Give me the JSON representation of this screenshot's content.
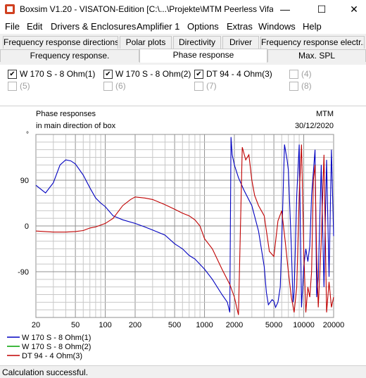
{
  "window": {
    "title": "Boxsim V1.20 - VISATON-Edition [C:\\...\\Projekte\\MTM Peerless Vifa...",
    "minimize": "—",
    "maximize": "☐",
    "close": "✕"
  },
  "menu": [
    "File",
    "Edit",
    "Drivers & Enclosures",
    "Amplifier 1",
    "Options",
    "Extras",
    "Windows",
    "Help"
  ],
  "tabs_row1": [
    "Frequency response directions",
    "Polar plots",
    "Directivity",
    "Driver",
    "Frequency response electr.."
  ],
  "tabs_row2": [
    "Frequency response.",
    "Phase response",
    "Max. SPL"
  ],
  "active_tab": "Phase response",
  "checkboxes": [
    {
      "label": "W 170 S - 8 Ohm(1)",
      "checked": true
    },
    {
      "label": "W 170 S - 8 Ohm(2)",
      "checked": true
    },
    {
      "label": "DT 94 - 4 Ohm(3)",
      "checked": true
    },
    {
      "label": "(4)",
      "checked": false
    },
    {
      "label": "(5)",
      "checked": false
    },
    {
      "label": "(6)",
      "checked": false
    },
    {
      "label": "(7)",
      "checked": false
    },
    {
      "label": "(8)",
      "checked": false
    }
  ],
  "chart_data": {
    "type": "line",
    "title": "Phase responses",
    "subtitle": "in main direction of box",
    "project": "MTM",
    "date": "30/12/2020",
    "x_scale": "log",
    "xlim": [
      20,
      20000
    ],
    "ylim": [
      -180,
      180
    ],
    "x_ticks": [
      20,
      50,
      100,
      200,
      500,
      1000,
      2000,
      5000,
      10000,
      20000
    ],
    "y_ticks": [
      90,
      0,
      -90
    ],
    "top_marker": "°",
    "grid": true,
    "legend_position": "bottom-left",
    "series": [
      {
        "name": "W 170 S - 8 Ohm(1)",
        "color": "#0000c0",
        "points": [
          [
            20,
            80
          ],
          [
            25,
            65
          ],
          [
            30,
            85
          ],
          [
            35,
            120
          ],
          [
            40,
            130
          ],
          [
            45,
            128
          ],
          [
            50,
            122
          ],
          [
            60,
            100
          ],
          [
            70,
            75
          ],
          [
            80,
            55
          ],
          [
            90,
            45
          ],
          [
            100,
            38
          ],
          [
            120,
            20
          ],
          [
            150,
            12
          ],
          [
            200,
            5
          ],
          [
            250,
            -2
          ],
          [
            300,
            -8
          ],
          [
            400,
            -18
          ],
          [
            500,
            -35
          ],
          [
            600,
            -45
          ],
          [
            700,
            -58
          ],
          [
            800,
            -65
          ],
          [
            1000,
            -85
          ],
          [
            1200,
            -105
          ],
          [
            1500,
            -135
          ],
          [
            1700,
            -150
          ],
          [
            1800,
            -170
          ],
          [
            1850,
            175
          ],
          [
            1900,
            140
          ],
          [
            2000,
            120
          ],
          [
            2200,
            95
          ],
          [
            2500,
            70
          ],
          [
            3000,
            40
          ],
          [
            3500,
            -10
          ],
          [
            4000,
            -80
          ],
          [
            4200,
            -130
          ],
          [
            4400,
            -155
          ],
          [
            4600,
            -150
          ],
          [
            4800,
            -145
          ],
          [
            5000,
            -148
          ],
          [
            5200,
            -160
          ],
          [
            5500,
            -150
          ],
          [
            5800,
            -120
          ],
          [
            6000,
            -30
          ],
          [
            6400,
            160
          ],
          [
            6800,
            130
          ],
          [
            7000,
            110
          ],
          [
            7500,
            -40
          ],
          [
            7800,
            -150
          ],
          [
            8000,
            -130
          ],
          [
            8500,
            60
          ],
          [
            9000,
            160
          ],
          [
            9500,
            -160
          ],
          [
            10000,
            -80
          ],
          [
            10500,
            -45
          ],
          [
            11000,
            -70
          ],
          [
            11500,
            -40
          ],
          [
            12000,
            60
          ],
          [
            13000,
            150
          ],
          [
            13500,
            -140
          ],
          [
            14000,
            -100
          ],
          [
            15000,
            120
          ],
          [
            16000,
            -120
          ],
          [
            17000,
            130
          ],
          [
            18000,
            -100
          ],
          [
            19000,
            150
          ],
          [
            20000,
            -20
          ]
        ]
      },
      {
        "name": "W 170 S - 8 Ohm(2)",
        "color": "#00a000",
        "points": []
      },
      {
        "name": "DT 94 - 4 Ohm(3)",
        "color": "#c00000",
        "points": [
          [
            20,
            -10
          ],
          [
            30,
            -12
          ],
          [
            40,
            -12
          ],
          [
            50,
            -11
          ],
          [
            60,
            -9
          ],
          [
            70,
            -4
          ],
          [
            80,
            -2
          ],
          [
            100,
            5
          ],
          [
            120,
            15
          ],
          [
            150,
            40
          ],
          [
            180,
            52
          ],
          [
            200,
            57
          ],
          [
            250,
            55
          ],
          [
            300,
            52
          ],
          [
            400,
            42
          ],
          [
            500,
            33
          ],
          [
            600,
            25
          ],
          [
            700,
            20
          ],
          [
            800,
            12
          ],
          [
            900,
            0
          ],
          [
            1000,
            -25
          ],
          [
            1200,
            -45
          ],
          [
            1500,
            -85
          ],
          [
            1800,
            -115
          ],
          [
            2000,
            -140
          ],
          [
            2200,
            -175
          ],
          [
            2400,
            155
          ],
          [
            2600,
            130
          ],
          [
            2800,
            140
          ],
          [
            3000,
            90
          ],
          [
            3200,
            60
          ],
          [
            3500,
            40
          ],
          [
            4000,
            20
          ],
          [
            4500,
            -50
          ],
          [
            5000,
            -60
          ],
          [
            5500,
            10
          ],
          [
            6000,
            30
          ],
          [
            6500,
            -30
          ],
          [
            7000,
            -90
          ],
          [
            7500,
            -140
          ],
          [
            8000,
            -170
          ],
          [
            8500,
            -120
          ],
          [
            9000,
            60
          ],
          [
            9500,
            160
          ],
          [
            10000,
            -50
          ],
          [
            10500,
            -170
          ],
          [
            11000,
            -120
          ],
          [
            11500,
            -140
          ],
          [
            12000,
            -90
          ],
          [
            12500,
            90
          ],
          [
            13000,
            120
          ],
          [
            13500,
            -60
          ],
          [
            14000,
            -160
          ],
          [
            15000,
            -30
          ],
          [
            16000,
            140
          ],
          [
            17000,
            -170
          ],
          [
            18000,
            -110
          ],
          [
            19000,
            -160
          ],
          [
            20000,
            -140
          ]
        ]
      }
    ]
  },
  "status": "Calculation successful."
}
